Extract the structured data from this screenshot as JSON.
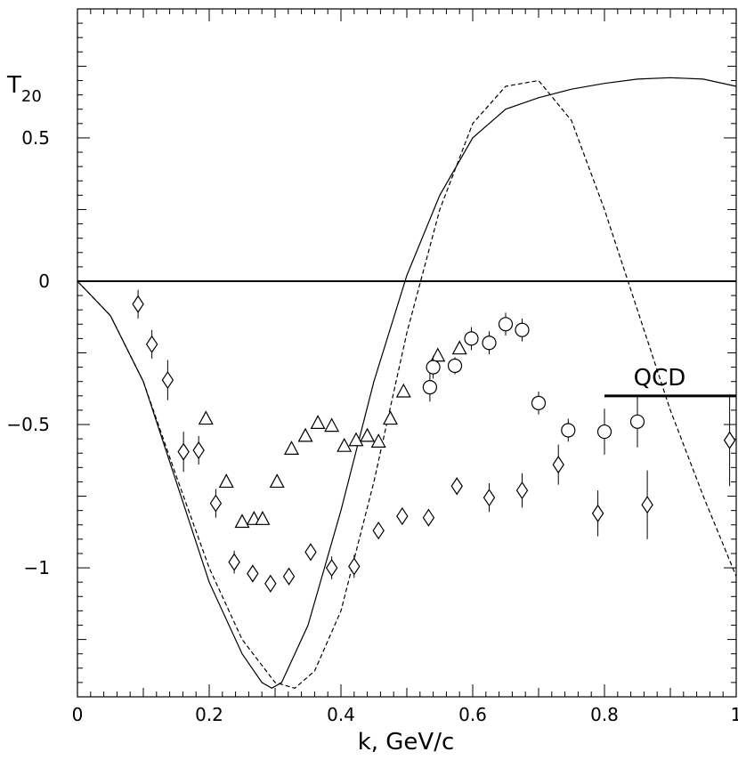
{
  "chart_data": {
    "type": "scatter",
    "title": "",
    "xlabel": "k, GeV/c",
    "ylabel_main": "T",
    "ylabel_sub": "20",
    "xlim": [
      0,
      1
    ],
    "ylim": [
      -1.45,
      0.95
    ],
    "x_ticks": [
      {
        "value": 0,
        "label": "0"
      },
      {
        "value": 0.2,
        "label": "0.2"
      },
      {
        "value": 0.4,
        "label": "0.4"
      },
      {
        "value": 0.6,
        "label": "0.6"
      },
      {
        "value": 0.8,
        "label": "0.8"
      },
      {
        "value": 1,
        "label": "1"
      }
    ],
    "y_ticks": [
      {
        "value": 0.5,
        "label": "0.5"
      },
      {
        "value": 0,
        "label": "0"
      },
      {
        "value": -0.5,
        "label": "-0.5"
      },
      {
        "value": -1,
        "label": "-1"
      }
    ],
    "annotation": {
      "text": "QCD",
      "x": [
        0.8,
        1.0
      ],
      "y": -0.4
    },
    "zero_line": 0,
    "series": [
      {
        "marker": "diamond",
        "points": [
          {
            "x": 0.092,
            "y": -0.08,
            "err": 0.05
          },
          {
            "x": 0.113,
            "y": -0.22,
            "err": 0.05
          },
          {
            "x": 0.137,
            "y": -0.345,
            "err": 0.07
          },
          {
            "x": 0.161,
            "y": -0.595,
            "err": 0.07
          },
          {
            "x": 0.184,
            "y": -0.59,
            "err": 0.05
          },
          {
            "x": 0.21,
            "y": -0.775,
            "err": 0.05
          },
          {
            "x": 0.238,
            "y": -0.98,
            "err": 0.04
          },
          {
            "x": 0.266,
            "y": -1.02,
            "err": 0.03
          },
          {
            "x": 0.293,
            "y": -1.055,
            "err": 0.03
          },
          {
            "x": 0.321,
            "y": -1.03,
            "err": 0.03
          },
          {
            "x": 0.354,
            "y": -0.945,
            "err": 0.03
          },
          {
            "x": 0.386,
            "y": -1.0,
            "err": 0.04
          },
          {
            "x": 0.42,
            "y": -0.995,
            "err": 0.04
          },
          {
            "x": 0.457,
            "y": -0.87,
            "err": 0.03
          },
          {
            "x": 0.493,
            "y": -0.82,
            "err": 0.03
          },
          {
            "x": 0.533,
            "y": -0.825,
            "err": 0.03
          },
          {
            "x": 0.576,
            "y": -0.715,
            "err": 0.03
          },
          {
            "x": 0.625,
            "y": -0.755,
            "err": 0.05
          },
          {
            "x": 0.675,
            "y": -0.73,
            "err": 0.06
          },
          {
            "x": 0.73,
            "y": -0.64,
            "err": 0.07
          },
          {
            "x": 0.79,
            "y": -0.81,
            "err": 0.08
          },
          {
            "x": 0.865,
            "y": -0.78,
            "err": 0.12
          },
          {
            "x": 0.99,
            "y": -0.555,
            "err": 0.16
          }
        ]
      },
      {
        "marker": "triangle",
        "points": [
          {
            "x": 0.195,
            "y": -0.48
          },
          {
            "x": 0.226,
            "y": -0.7
          },
          {
            "x": 0.25,
            "y": -0.84
          },
          {
            "x": 0.268,
            "y": -0.83
          },
          {
            "x": 0.281,
            "y": -0.83
          },
          {
            "x": 0.303,
            "y": -0.7
          },
          {
            "x": 0.325,
            "y": -0.585
          },
          {
            "x": 0.346,
            "y": -0.54
          },
          {
            "x": 0.365,
            "y": -0.495
          },
          {
            "x": 0.386,
            "y": -0.505
          },
          {
            "x": 0.405,
            "y": -0.575
          },
          {
            "x": 0.423,
            "y": -0.555
          },
          {
            "x": 0.44,
            "y": -0.54
          },
          {
            "x": 0.457,
            "y": -0.56
          },
          {
            "x": 0.475,
            "y": -0.48
          },
          {
            "x": 0.495,
            "y": -0.385
          },
          {
            "x": 0.547,
            "y": -0.26
          },
          {
            "x": 0.58,
            "y": -0.235
          }
        ]
      },
      {
        "marker": "circle",
        "points": [
          {
            "x": 0.535,
            "y": -0.37,
            "err": 0.05
          },
          {
            "x": 0.54,
            "y": -0.3,
            "err": 0.04
          },
          {
            "x": 0.573,
            "y": -0.295,
            "err": 0.03
          },
          {
            "x": 0.598,
            "y": -0.2,
            "err": 0.04
          },
          {
            "x": 0.625,
            "y": -0.215,
            "err": 0.04
          },
          {
            "x": 0.65,
            "y": -0.15,
            "err": 0.04
          },
          {
            "x": 0.675,
            "y": -0.17,
            "err": 0.04
          },
          {
            "x": 0.7,
            "y": -0.425,
            "err": 0.04
          },
          {
            "x": 0.745,
            "y": -0.52,
            "err": 0.04
          },
          {
            "x": 0.8,
            "y": -0.525,
            "err": 0.08
          },
          {
            "x": 0.85,
            "y": -0.49,
            "err": 0.09
          }
        ]
      },
      {
        "style": "solid",
        "points": [
          [
            0,
            0
          ],
          [
            0.05,
            -0.12
          ],
          [
            0.1,
            -0.35
          ],
          [
            0.15,
            -0.7
          ],
          [
            0.2,
            -1.05
          ],
          [
            0.25,
            -1.3
          ],
          [
            0.28,
            -1.4
          ],
          [
            0.295,
            -1.42
          ],
          [
            0.31,
            -1.4
          ],
          [
            0.35,
            -1.2
          ],
          [
            0.4,
            -0.8
          ],
          [
            0.45,
            -0.35
          ],
          [
            0.5,
            0.02
          ],
          [
            0.55,
            0.3
          ],
          [
            0.6,
            0.5
          ],
          [
            0.65,
            0.6
          ],
          [
            0.7,
            0.64
          ],
          [
            0.75,
            0.67
          ],
          [
            0.8,
            0.69
          ],
          [
            0.85,
            0.705
          ],
          [
            0.9,
            0.71
          ],
          [
            0.95,
            0.705
          ],
          [
            1.0,
            0.68
          ]
        ]
      },
      {
        "style": "dashed",
        "points": [
          [
            0,
            0
          ],
          [
            0.05,
            -0.12
          ],
          [
            0.1,
            -0.35
          ],
          [
            0.15,
            -0.68
          ],
          [
            0.2,
            -1.0
          ],
          [
            0.25,
            -1.25
          ],
          [
            0.3,
            -1.4
          ],
          [
            0.33,
            -1.42
          ],
          [
            0.36,
            -1.36
          ],
          [
            0.4,
            -1.15
          ],
          [
            0.45,
            -0.7
          ],
          [
            0.5,
            -0.18
          ],
          [
            0.55,
            0.25
          ],
          [
            0.6,
            0.55
          ],
          [
            0.65,
            0.68
          ],
          [
            0.7,
            0.7
          ],
          [
            0.75,
            0.56
          ],
          [
            0.8,
            0.25
          ],
          [
            0.85,
            -0.1
          ],
          [
            0.9,
            -0.45
          ],
          [
            0.95,
            -0.75
          ],
          [
            1.0,
            -1.03
          ]
        ]
      }
    ]
  }
}
